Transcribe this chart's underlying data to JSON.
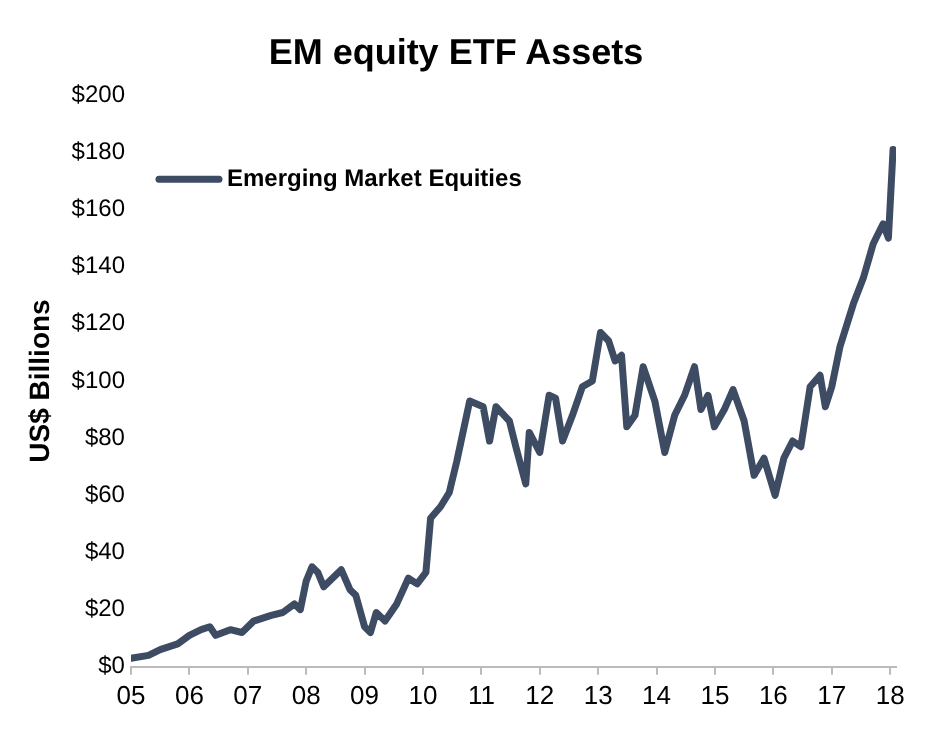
{
  "chart_data": {
    "type": "line",
    "title": "EM equity ETF Assets",
    "ylabel": "US$ Billions",
    "x": [
      2005.0,
      2005.3,
      2005.5,
      2005.8,
      2006.0,
      2006.2,
      2006.35,
      2006.45,
      2006.7,
      2006.9,
      2007.1,
      2007.4,
      2007.6,
      2007.8,
      2007.9,
      2008.0,
      2008.1,
      2008.2,
      2008.3,
      2008.45,
      2008.6,
      2008.75,
      2008.85,
      2009.0,
      2009.1,
      2009.2,
      2009.35,
      2009.55,
      2009.75,
      2009.9,
      2010.05,
      2010.13,
      2010.3,
      2010.45,
      2010.58,
      2010.8,
      2011.03,
      2011.14,
      2011.25,
      2011.48,
      2011.59,
      2011.76,
      2011.82,
      2012.0,
      2012.16,
      2012.27,
      2012.39,
      2012.56,
      2012.73,
      2012.9,
      2013.04,
      2013.18,
      2013.29,
      2013.4,
      2013.49,
      2013.63,
      2013.77,
      2013.97,
      2014.14,
      2014.31,
      2014.48,
      2014.65,
      2014.76,
      2014.88,
      2014.99,
      2015.16,
      2015.31,
      2015.5,
      2015.67,
      2015.84,
      2016.03,
      2016.18,
      2016.33,
      2016.47,
      2016.63,
      2016.8,
      2016.89,
      2017.0,
      2017.14,
      2017.37,
      2017.54,
      2017.71,
      2017.88,
      2017.97,
      2018.05
    ],
    "series": [
      {
        "name": "Emerging Market Equities",
        "color": "#3d4b63",
        "values": [
          3,
          4,
          6,
          8,
          11,
          13,
          14,
          11,
          13,
          12,
          16,
          18,
          19,
          22,
          20,
          30,
          35,
          33,
          28,
          31,
          34,
          27,
          25,
          14,
          12,
          19,
          16,
          22,
          31,
          29,
          33,
          52,
          56,
          61,
          72,
          93,
          91,
          79,
          91,
          86,
          77,
          64,
          82,
          75,
          95,
          94,
          79,
          88,
          98,
          100,
          117,
          114,
          107,
          109,
          84,
          88,
          105,
          93,
          75,
          88,
          95,
          105,
          90,
          95,
          84,
          90,
          97,
          86,
          67,
          73,
          60,
          73,
          79,
          77,
          98,
          102,
          91,
          98,
          112,
          127,
          136,
          148,
          155,
          150,
          181
        ]
      }
    ],
    "xlim": [
      2005,
      2018.1
    ],
    "xticks": [
      {
        "value": 2005,
        "label": "05"
      },
      {
        "value": 2006,
        "label": "06"
      },
      {
        "value": 2007,
        "label": "07"
      },
      {
        "value": 2008,
        "label": "08"
      },
      {
        "value": 2009,
        "label": "09"
      },
      {
        "value": 2010,
        "label": "10"
      },
      {
        "value": 2011,
        "label": "11"
      },
      {
        "value": 2012,
        "label": "12"
      },
      {
        "value": 2013,
        "label": "13"
      },
      {
        "value": 2014,
        "label": "14"
      },
      {
        "value": 2015,
        "label": "15"
      },
      {
        "value": 2016,
        "label": "16"
      },
      {
        "value": 2017,
        "label": "17"
      },
      {
        "value": 2018,
        "label": "18"
      }
    ],
    "ylim": [
      0,
      200
    ],
    "yticks": [
      {
        "value": 0,
        "label": "$0"
      },
      {
        "value": 20,
        "label": "$20"
      },
      {
        "value": 40,
        "label": "$40"
      },
      {
        "value": 60,
        "label": "$60"
      },
      {
        "value": 80,
        "label": "$80"
      },
      {
        "value": 100,
        "label": "$100"
      },
      {
        "value": 120,
        "label": "$120"
      },
      {
        "value": 140,
        "label": "$140"
      },
      {
        "value": 160,
        "label": "$160"
      },
      {
        "value": 180,
        "label": "$180"
      },
      {
        "value": 200,
        "label": "$200"
      }
    ],
    "grid": false,
    "legend": "top left",
    "marker": "none",
    "line_style": "solid"
  }
}
